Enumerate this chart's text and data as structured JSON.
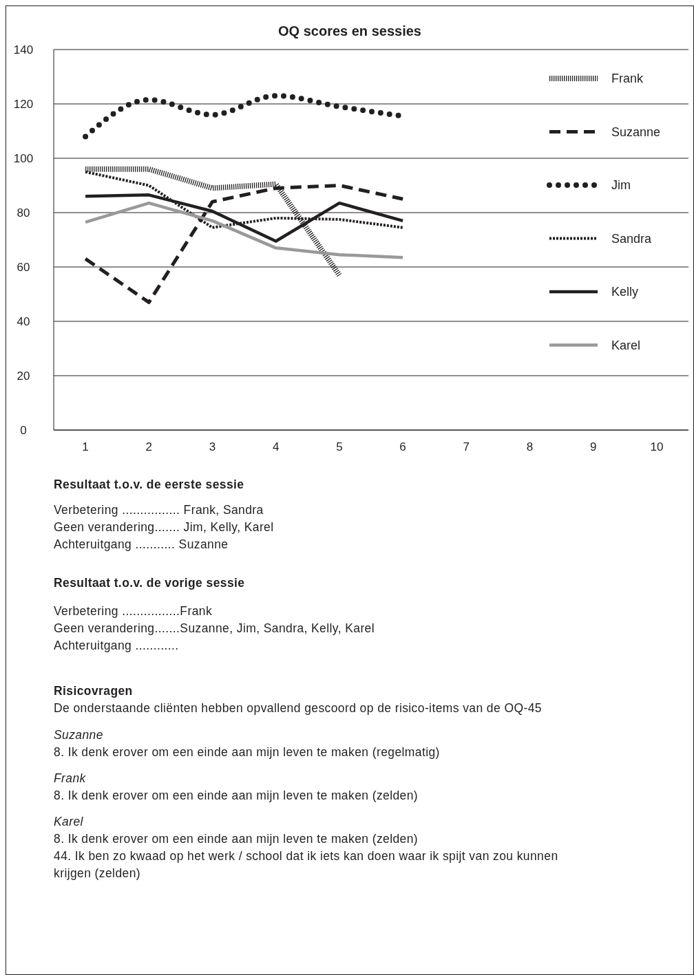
{
  "chart_data": {
    "type": "line",
    "title": "OQ scores en sessies",
    "categories": [
      "1",
      "2",
      "3",
      "4",
      "5",
      "6",
      "7",
      "8",
      "9",
      "10"
    ],
    "ylim": [
      0,
      140
    ],
    "yticks": [
      0,
      20,
      40,
      60,
      80,
      100,
      120,
      140
    ],
    "grid": "y",
    "legend": "right",
    "series": [
      {
        "name": "Frank",
        "color": "#231f20",
        "line_style": "hatched",
        "values": [
          96,
          96,
          89,
          90.5,
          57,
          null,
          null,
          null,
          null,
          null
        ]
      },
      {
        "name": "Suzanne",
        "color": "#231f20",
        "line_style": "dashed",
        "values": [
          63,
          47,
          84,
          89,
          90,
          85,
          null,
          null,
          null,
          null
        ]
      },
      {
        "name": "Jim",
        "color": "#231f20",
        "line_style": "dotted",
        "values": [
          108,
          121.5,
          116,
          123,
          119,
          115.5,
          null,
          null,
          null,
          null
        ]
      },
      {
        "name": "Sandra",
        "color": "#231f20",
        "line_style": "diamonds",
        "values": [
          95,
          90,
          74.5,
          78,
          77.5,
          74.5,
          null,
          null,
          null,
          null
        ]
      },
      {
        "name": "Kelly",
        "color": "#231f20",
        "line_style": "solid",
        "values": [
          86,
          86.5,
          80.5,
          69.5,
          83.5,
          77,
          null,
          null,
          null,
          null
        ]
      },
      {
        "name": "Karel",
        "color": "#999999",
        "line_style": "solid",
        "values": [
          76.5,
          83.5,
          77,
          67,
          64.5,
          63.5,
          null,
          null,
          null,
          null
        ]
      }
    ],
    "annotations": [
      "Resultaat t.o.v. de eerste sessie",
      "Verbetering ................ Frank, Sandra",
      "Geen verandering....... Jim, Kelly, Karel",
      "Achteruitgang ........... Suzanne",
      "Resultaat t.o.v. de vorige sessie",
      "Verbetering ................Frank",
      "Geen verandering.......Suzanne, Jim, Sandra, Kelly, Karel",
      "Achteruitgang ............",
      "Risicovragen",
      "De onderstaande cliënten hebben opvallend gescoord op de risico-items van de OQ-45",
      "Suzanne",
      "8. Ik denk erover om een einde aan mijn leven te maken (regelmatig)",
      "Frank",
      "8. Ik denk erover om een einde aan mijn leven te maken (zelden)",
      "Karel",
      "8. Ik denk erover om een einde aan mijn leven te maken (zelden)",
      "44. Ik ben zo kwaad op het werk / school dat ik iets kan doen waar ik spijt van zou kunnen krijgen (zelden)"
    ]
  }
}
